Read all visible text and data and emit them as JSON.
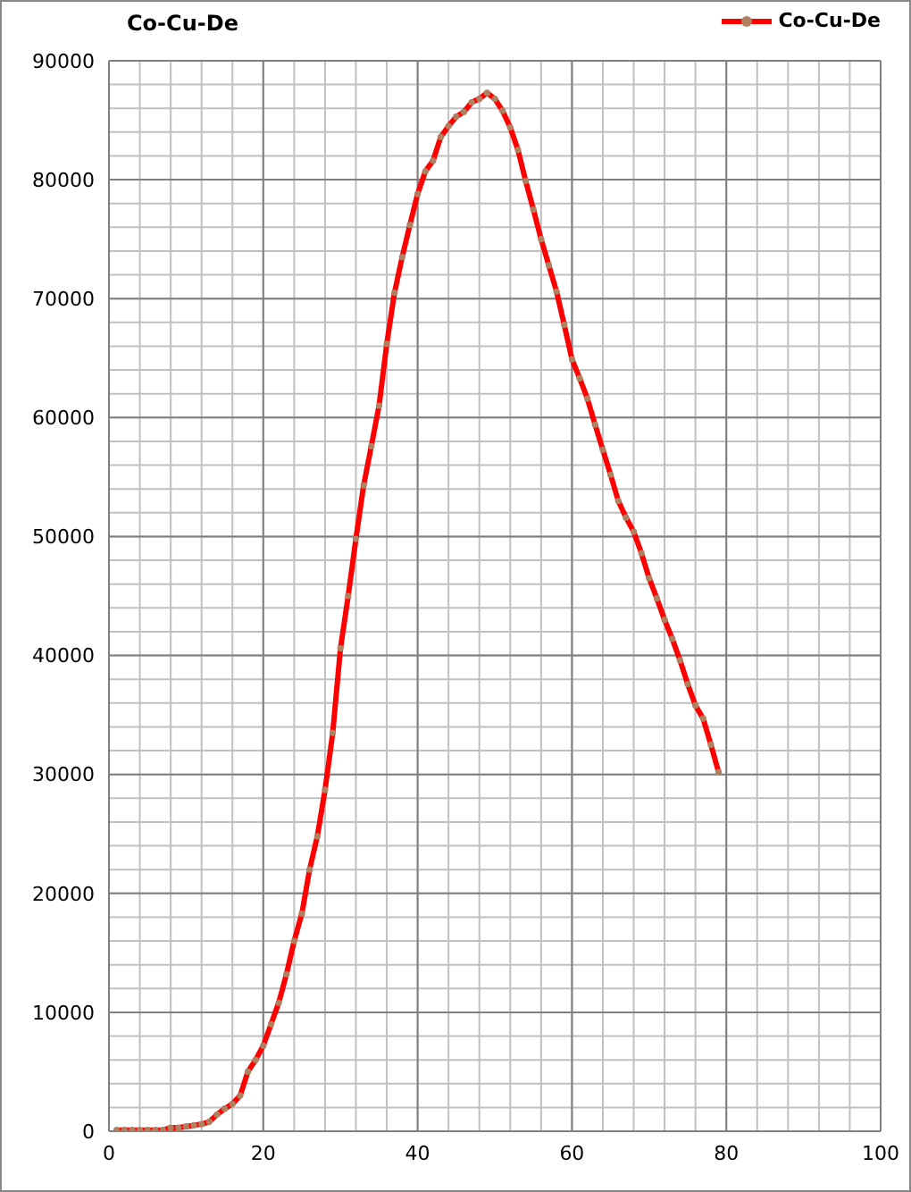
{
  "chart_data": {
    "type": "line",
    "title": "Co-Cu-De",
    "x": [
      1,
      2,
      3,
      4,
      5,
      6,
      7,
      8,
      9,
      10,
      11,
      12,
      13,
      14,
      15,
      16,
      17,
      18,
      19,
      20,
      21,
      22,
      23,
      24,
      25,
      26,
      27,
      28,
      29,
      30,
      31,
      32,
      33,
      34,
      35,
      36,
      37,
      38,
      39,
      40,
      41,
      42,
      43,
      44,
      45,
      46,
      47,
      48,
      49,
      50,
      51,
      52,
      53,
      54,
      55,
      56,
      57,
      58,
      59,
      60,
      61,
      62,
      63,
      64,
      65,
      66,
      67,
      68,
      69,
      70,
      71,
      72,
      73,
      74,
      75,
      76,
      77,
      78,
      79
    ],
    "series": [
      {
        "name": "Co-Cu-De",
        "color": "#ff0000",
        "values": [
          100,
          100,
          100,
          100,
          100,
          100,
          100,
          300,
          300,
          400,
          500,
          600,
          800,
          1400,
          1900,
          2300,
          3000,
          5000,
          6000,
          7200,
          9000,
          10800,
          13200,
          16000,
          18300,
          22000,
          24800,
          28700,
          33500,
          40600,
          45000,
          49800,
          54300,
          57600,
          61000,
          66200,
          70500,
          73500,
          76200,
          78800,
          80700,
          81600,
          83600,
          84500,
          85300,
          85700,
          86500,
          86800,
          87300,
          86800,
          85800,
          84400,
          82500,
          79900,
          77500,
          75000,
          72800,
          70600,
          67800,
          64900,
          63300,
          61600,
          59400,
          57300,
          55200,
          53000,
          51600,
          50400,
          48600,
          46500,
          44800,
          43000,
          41400,
          39600,
          37600,
          35800,
          34700,
          32500,
          30200
        ]
      }
    ],
    "xlim": [
      0,
      100
    ],
    "xticks": [
      0,
      20,
      40,
      60,
      80,
      100
    ],
    "ylim": [
      0,
      90000
    ],
    "yticks": [
      0,
      10000,
      20000,
      30000,
      40000,
      50000,
      60000,
      70000,
      80000,
      90000
    ],
    "grid": true,
    "legend": "top right",
    "marker": "circle",
    "line_style": "solid"
  }
}
